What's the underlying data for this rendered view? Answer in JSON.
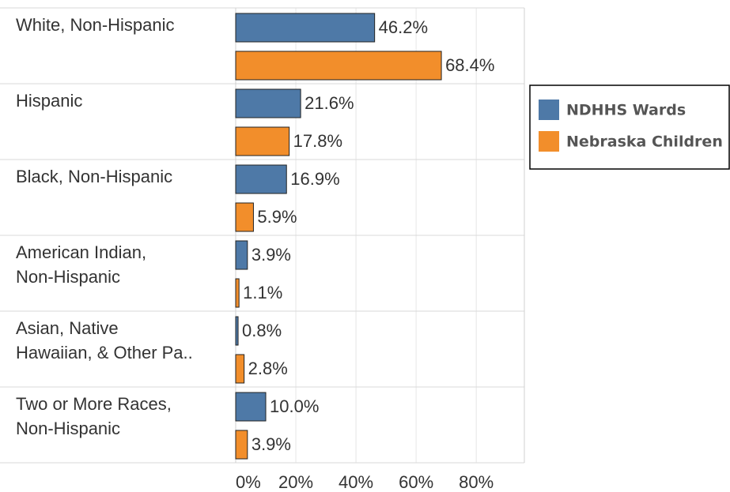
{
  "chart_data": {
    "type": "bar",
    "orientation": "horizontal",
    "categories": [
      "White, Non-Hispanic",
      "Hispanic",
      "Black, Non-Hispanic",
      "American Indian,\nNon-Hispanic",
      "Asian, Native\nHawaiian, & Other Pa..",
      "Two or More Races,\nNon-Hispanic"
    ],
    "series": [
      {
        "name": "NDHHS Wards",
        "color": "#4e79a7",
        "values": [
          46.2,
          21.6,
          16.9,
          3.9,
          0.8,
          10.0
        ],
        "value_labels": [
          "46.2%",
          "21.6%",
          "16.9%",
          "3.9%",
          "0.8%",
          "10.0%"
        ]
      },
      {
        "name": "Nebraska Children",
        "color": "#f28e2b",
        "values": [
          68.4,
          17.8,
          5.9,
          1.1,
          2.8,
          3.9
        ],
        "value_labels": [
          "68.4%",
          "17.8%",
          "5.9%",
          "1.1%",
          "2.8%",
          "3.9%"
        ]
      }
    ],
    "xlim": [
      0,
      96
    ],
    "xticks": [
      {
        "value": 0,
        "label": "0%"
      },
      {
        "value": 20,
        "label": "20%"
      },
      {
        "value": 40,
        "label": "40%"
      },
      {
        "value": 60,
        "label": "60%"
      },
      {
        "value": 80,
        "label": "80%"
      }
    ],
    "grid": true,
    "legend": "right"
  }
}
